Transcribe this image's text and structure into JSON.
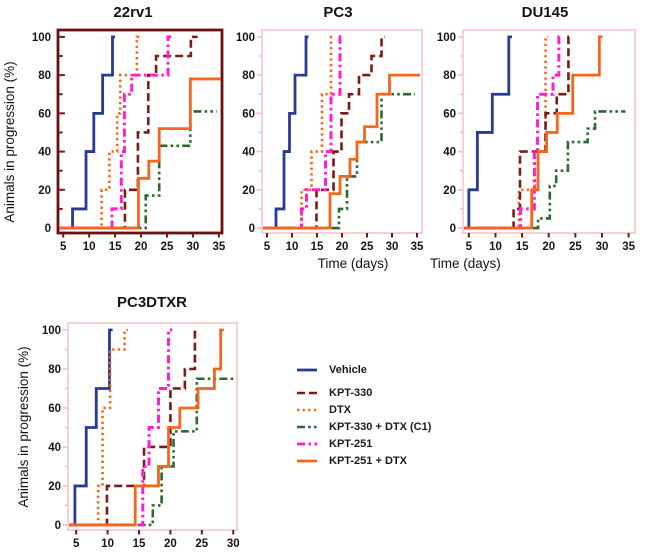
{
  "figure": {
    "description": "Kaplan-Meier style progression plots for four prostate cancer xenograft models"
  },
  "legend": {
    "items": [
      {
        "id": "vehicle",
        "label": "Vehicle",
        "color": "#283a93",
        "linestyle": "solid"
      },
      {
        "id": "kpt330",
        "label": "KPT-330",
        "color": "#7b1b15",
        "linestyle": "dashed"
      },
      {
        "id": "dtx",
        "label": "DTX",
        "color": "#f4661b",
        "linestyle": "dotted"
      },
      {
        "id": "kpt330dtx",
        "label": "KPT-330 + DTX (C1)",
        "color": "#2a6b2d",
        "linestyle": "dashdotdot"
      },
      {
        "id": "kpt251",
        "label": "KPT-251",
        "color": "#ff1fd1",
        "linestyle": "dashdot"
      },
      {
        "id": "kpt251dtx",
        "label": "KPT-251 + DTX",
        "color": "#f4661b",
        "linestyle": "solid"
      }
    ]
  },
  "chart_data": [
    {
      "type": "line",
      "subtype": "step",
      "title": "22rv1",
      "xlabel": "",
      "ylabel": "Animals in progression (%)",
      "xticks": [
        5,
        10,
        15,
        20,
        25,
        30,
        35
      ],
      "yticks": [
        0,
        20,
        40,
        60,
        80,
        100
      ],
      "xlim": [
        5,
        35
      ],
      "ylim": [
        0,
        100
      ],
      "frame_color": "#6b1010",
      "frame_width": 2.8,
      "xtick_color": "#7a1513",
      "ytick_color": "#7a1513",
      "series": [
        {
          "name": "Vehicle",
          "style": "vehicle",
          "steps": [
            [
              6.8,
              10
            ],
            [
              9.4,
              40
            ],
            [
              10.9,
              60
            ],
            [
              12.6,
              80
            ],
            [
              14.5,
              100
            ]
          ],
          "end": 15.0
        },
        {
          "name": "DTX",
          "style": "dtx",
          "steps": [
            [
              12.4,
              20
            ],
            [
              13.9,
              40
            ],
            [
              15.4,
              60
            ],
            [
              16.0,
              80
            ],
            [
              19.2,
              100
            ]
          ],
          "end": 19.7
        },
        {
          "name": "KPT-330",
          "style": "kpt330",
          "steps": [
            [
              16.9,
              20
            ],
            [
              19.4,
              50
            ],
            [
              21.4,
              80
            ],
            [
              22.9,
              90
            ],
            [
              29.6,
              100
            ]
          ],
          "end": 30.9
        },
        {
          "name": "KPT-330 + DTX (C1)",
          "style": "kpt330dtx",
          "steps": [
            [
              20.9,
              17
            ],
            [
              23.5,
              43
            ],
            [
              29.5,
              61
            ]
          ],
          "end": 34.6
        },
        {
          "name": "KPT-251",
          "style": "kpt251",
          "steps": [
            [
              14.4,
              10
            ],
            [
              16.2,
              40
            ],
            [
              16.8,
              70
            ],
            [
              18.2,
              80
            ],
            [
              25.2,
              100
            ]
          ],
          "end": 25.8
        },
        {
          "name": "KPT-251 + DTX",
          "style": "kpt251dtx",
          "steps": [
            [
              19.5,
              26
            ],
            [
              21.5,
              35
            ],
            [
              23.5,
              52
            ],
            [
              29.5,
              78
            ]
          ],
          "end": 35.4
        }
      ]
    },
    {
      "type": "line",
      "subtype": "step",
      "title": "PC3",
      "xlabel": "Time (days)",
      "ylabel": "",
      "xticks": [
        5,
        10,
        15,
        20,
        25,
        30,
        35
      ],
      "yticks": [
        0,
        20,
        40,
        60,
        80,
        100
      ],
      "xlim": [
        5,
        35
      ],
      "ylim": [
        0,
        100
      ],
      "frame_color": "#f2c7c7",
      "frame_width": 1.6,
      "xtick_color": "#7a1513",
      "ytick_color": "#eec2c2",
      "series": [
        {
          "name": "Vehicle",
          "style": "vehicle",
          "steps": [
            [
              6.8,
              10
            ],
            [
              8.4,
              40
            ],
            [
              9.5,
              60
            ],
            [
              10.6,
              80
            ],
            [
              12.8,
              100
            ]
          ],
          "end": 13.3
        },
        {
          "name": "DTX",
          "style": "dtx",
          "steps": [
            [
              11.9,
              20
            ],
            [
              13.9,
              40
            ],
            [
              16.0,
              70
            ],
            [
              17.8,
              100
            ]
          ],
          "end": 18.3
        },
        {
          "name": "KPT-330",
          "style": "kpt330",
          "steps": [
            [
              14.9,
              20
            ],
            [
              18.3,
              40
            ],
            [
              19.9,
              60
            ],
            [
              21.4,
              70
            ],
            [
              23.4,
              80
            ],
            [
              25.9,
              90
            ],
            [
              27.9,
              100
            ]
          ],
          "end": 28.5
        },
        {
          "name": "KPT-330 + DTX (C1)",
          "style": "kpt330dtx",
          "steps": [
            [
              19.4,
              10
            ],
            [
              21.0,
              27
            ],
            [
              23.0,
              45
            ],
            [
              27.9,
              70
            ]
          ],
          "end": 34.6
        },
        {
          "name": "KPT-251",
          "style": "kpt251",
          "steps": [
            [
              11.9,
              10
            ],
            [
              12.9,
              20
            ],
            [
              16.7,
              40
            ],
            [
              17.8,
              70
            ],
            [
              19.6,
              100
            ]
          ],
          "end": 20.1
        },
        {
          "name": "KPT-251 + DTX",
          "style": "kpt251dtx",
          "steps": [
            [
              17.6,
              18
            ],
            [
              19.6,
              27
            ],
            [
              21.6,
              36
            ],
            [
              23.0,
              45
            ],
            [
              24.5,
              53
            ],
            [
              27.0,
              70
            ],
            [
              29.5,
              80
            ]
          ],
          "end": 35.6
        }
      ]
    },
    {
      "type": "line",
      "subtype": "step",
      "title": "DU145",
      "xlabel": "Time (days)",
      "ylabel": "",
      "xticks": [
        5,
        10,
        15,
        20,
        25,
        30,
        35
      ],
      "yticks": [
        0,
        20,
        40,
        60,
        80,
        100
      ],
      "xlim": [
        5,
        35
      ],
      "ylim": [
        0,
        100
      ],
      "frame_color": "#f2c7c7",
      "frame_width": 1.6,
      "xtick_color": "#7a1513",
      "ytick_color": "#eec2c2",
      "series": [
        {
          "name": "Vehicle",
          "style": "vehicle",
          "steps": [
            [
              5.0,
              20
            ],
            [
              6.6,
              50
            ],
            [
              9.4,
              70
            ],
            [
              12.5,
              100
            ]
          ],
          "end": 13.1
        },
        {
          "name": "DTX",
          "style": "dtx",
          "steps": [
            [
              14.4,
              20
            ],
            [
              17.4,
              40
            ],
            [
              19.4,
              100
            ]
          ],
          "end": 19.9
        },
        {
          "name": "KPT-330",
          "style": "kpt330",
          "steps": [
            [
              13.4,
              10
            ],
            [
              14.6,
              40
            ],
            [
              19.4,
              60
            ],
            [
              21.5,
              70
            ],
            [
              23.7,
              100
            ]
          ],
          "end": 24.4
        },
        {
          "name": "KPT-330 + DTX (C1)",
          "style": "kpt330dtx",
          "steps": [
            [
              18.0,
              5
            ],
            [
              20.2,
              22
            ],
            [
              21.4,
              30
            ],
            [
              23.6,
              45
            ],
            [
              27.3,
              52
            ],
            [
              28.7,
              61
            ]
          ],
          "end": 34.4
        },
        {
          "name": "KPT-251",
          "style": "kpt251",
          "steps": [
            [
              14.7,
              10
            ],
            [
              17.3,
              40
            ],
            [
              17.9,
              70
            ],
            [
              20.8,
              80
            ],
            [
              21.9,
              100
            ]
          ],
          "end": 22.5
        },
        {
          "name": "KPT-251 + DTX",
          "style": "kpt251dtx",
          "steps": [
            [
              16.8,
              20
            ],
            [
              18.0,
              40
            ],
            [
              19.6,
              50
            ],
            [
              21.6,
              60
            ],
            [
              24.5,
              80
            ],
            [
              29.5,
              100
            ]
          ],
          "end": 30.1
        }
      ]
    },
    {
      "type": "line",
      "subtype": "step",
      "title": "PC3DTXR",
      "xlabel": "",
      "ylabel": "Animals in progression (%)",
      "xticks": [
        5,
        10,
        15,
        20,
        25,
        30
      ],
      "yticks": [
        0,
        20,
        40,
        60,
        80,
        100
      ],
      "xlim": [
        5,
        30
      ],
      "ylim": [
        0,
        100
      ],
      "frame_color": "#f2c7c7",
      "frame_width": 1.6,
      "xtick_color": "#7a1513",
      "ytick_color": "#eec2c2",
      "series": [
        {
          "name": "Vehicle",
          "style": "vehicle",
          "steps": [
            [
              4.8,
              20
            ],
            [
              6.6,
              50
            ],
            [
              8.2,
              70
            ],
            [
              10.3,
              100
            ]
          ],
          "end": 10.8
        },
        {
          "name": "DTX",
          "style": "dtx",
          "steps": [
            [
              8.5,
              20
            ],
            [
              9.2,
              60
            ],
            [
              10.4,
              90
            ],
            [
              12.7,
              100
            ]
          ],
          "end": 13.2
        },
        {
          "name": "KPT-330",
          "style": "kpt330",
          "steps": [
            [
              9.9,
              20
            ],
            [
              15.8,
              40
            ],
            [
              20.0,
              70
            ],
            [
              22.3,
              80
            ],
            [
              23.9,
              100
            ]
          ],
          "end": 24.4
        },
        {
          "name": "KPT-330 + DTX (C1)",
          "style": "kpt330dtx",
          "steps": [
            [
              17.2,
              10
            ],
            [
              18.6,
              30
            ],
            [
              20.5,
              48
            ],
            [
              24.2,
              75
            ]
          ],
          "end": 30.3
        },
        {
          "name": "KPT-251",
          "style": "kpt251",
          "steps": [
            [
              15.6,
              30
            ],
            [
              16.6,
              50
            ],
            [
              18.1,
              70
            ],
            [
              19.7,
              100
            ]
          ],
          "end": 20.3
        },
        {
          "name": "KPT-251 + DTX",
          "style": "kpt251dtx",
          "steps": [
            [
              14.4,
              20
            ],
            [
              18.1,
              30
            ],
            [
              19.7,
              50
            ],
            [
              21.5,
              60
            ],
            [
              24.4,
              70
            ],
            [
              27.0,
              80
            ],
            [
              28.0,
              100
            ]
          ],
          "end": 28.5
        }
      ]
    }
  ]
}
